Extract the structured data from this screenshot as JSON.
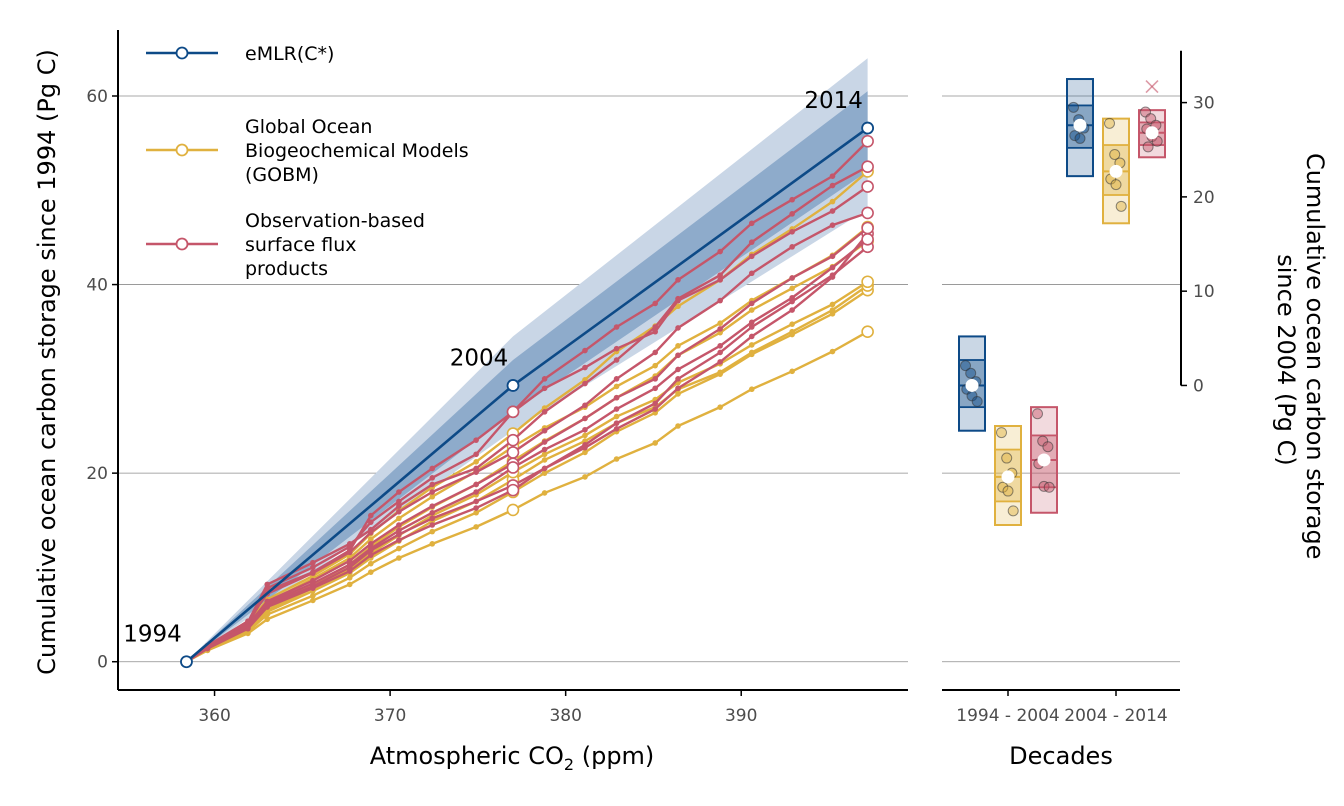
{
  "colors": {
    "emlr": "#0d4a87",
    "gobm": "#e0b13f",
    "obs": "#c5566a",
    "band_outer": "#c9d6e6",
    "band_inner": "#8eabcb",
    "grid": "#8c8c8c",
    "axis": "#000000"
  },
  "chart_data": [
    {
      "type": "line",
      "xlabel_main": "Atmospheric CO",
      "xlabel_sub": "2",
      "xlabel_tail": " (ppm)",
      "ylabel": "Cumulative ocean carbon storage since 1994 (Pg C)",
      "xlim": [
        354.5,
        399.5
      ],
      "ylim": [
        -3,
        67
      ],
      "xticks": [
        360,
        370,
        380,
        390
      ],
      "yticks": [
        0,
        20,
        40,
        60
      ],
      "grid": "horizontal",
      "legend_position": "top-left",
      "legend": [
        {
          "key": "emlr",
          "lines": [
            "eMLR(C*)"
          ]
        },
        {
          "key": "gobm",
          "lines": [
            "Global Ocean",
            "Biogeochemical Models",
            "(GOBM)"
          ]
        },
        {
          "key": "obs",
          "lines": [
            "Observation-based",
            "surface flux",
            "products"
          ]
        }
      ],
      "year_labels": [
        {
          "text": "1994",
          "x": 358.4,
          "y": 0
        },
        {
          "text": "2004",
          "x": 377.0,
          "y": 29.3
        },
        {
          "text": "2014",
          "x": 397.2,
          "y": 56.6
        }
      ],
      "x_years": [
        358.4,
        359.6,
        361.9,
        363.0,
        365.6,
        367.7,
        368.9,
        370.5,
        372.4,
        374.9,
        377.0,
        378.8,
        381.1,
        382.9,
        385.1,
        386.4,
        388.8,
        390.6,
        392.9,
        395.2,
        397.2
      ],
      "emlr": {
        "x": [
          358.4,
          377.0,
          397.2
        ],
        "y": [
          0,
          29.3,
          56.6
        ]
      },
      "band_outer": {
        "x": [
          358.4,
          377.0,
          397.2
        ],
        "lower": [
          0,
          24.5,
          48.0
        ],
        "upper": [
          0,
          34.5,
          64.0
        ]
      },
      "band_inner": {
        "x": [
          358.4,
          377.0,
          397.2
        ],
        "lower": [
          0,
          26.5,
          52.0
        ],
        "upper": [
          0,
          32.0,
          60.5
        ]
      },
      "series": [
        {
          "group": "gobm",
          "values": [
            0,
            1.2,
            3.0,
            4.5,
            6.5,
            8.2,
            9.5,
            11.0,
            12.5,
            14.3,
            16.1,
            17.9,
            19.6,
            21.5,
            23.2,
            25.0,
            27.0,
            28.9,
            30.8,
            32.9,
            35.0
          ]
        },
        {
          "group": "gobm",
          "values": [
            0,
            1.3,
            3.2,
            5.0,
            7.0,
            8.9,
            10.4,
            12.0,
            13.8,
            15.8,
            18.0,
            20.0,
            22.2,
            24.4,
            26.4,
            28.4,
            30.5,
            32.6,
            34.7,
            36.9,
            39.4
          ]
        },
        {
          "group": "gobm",
          "values": [
            0,
            1.4,
            3.4,
            5.3,
            7.5,
            9.4,
            11.0,
            12.8,
            14.9,
            17.0,
            19.3,
            21.4,
            23.4,
            25.3,
            27.0,
            28.9,
            30.7,
            32.8,
            35.0,
            37.3,
            39.9
          ]
        },
        {
          "group": "gobm",
          "values": [
            0,
            1.4,
            3.5,
            5.5,
            7.8,
            9.8,
            11.5,
            13.4,
            15.5,
            17.7,
            20.1,
            22.0,
            24.0,
            26.0,
            27.8,
            29.6,
            31.6,
            33.6,
            35.8,
            37.9,
            40.3
          ]
        },
        {
          "group": "gobm",
          "values": [
            0,
            1.5,
            3.6,
            5.8,
            8.2,
            10.3,
            12.2,
            14.3,
            16.4,
            18.8,
            21.3,
            23.4,
            25.8,
            28.0,
            30.3,
            32.5,
            34.9,
            37.3,
            39.6,
            41.9,
            44.6
          ]
        },
        {
          "group": "gobm",
          "values": [
            0,
            1.6,
            3.9,
            6.3,
            8.8,
            11.0,
            13.0,
            15.2,
            17.5,
            20.2,
            22.8,
            24.8,
            27.0,
            29.2,
            31.4,
            33.5,
            35.9,
            38.3,
            40.7,
            43.1,
            46.1
          ]
        },
        {
          "group": "gobm",
          "values": [
            0,
            1.7,
            4.1,
            6.6,
            9.1,
            11.4,
            13.6,
            16.0,
            18.5,
            21.2,
            24.2,
            26.9,
            29.9,
            32.9,
            35.6,
            37.7,
            40.5,
            43.2,
            45.9,
            48.8,
            52.0
          ]
        },
        {
          "group": "obs",
          "values": [
            0,
            1.5,
            4.0,
            7.8,
            10.0,
            12.2,
            14.8,
            17.0,
            19.5,
            22.0,
            26.5,
            29.0,
            31.2,
            33.2,
            35.0,
            38.3,
            40.5,
            43.0,
            45.6,
            47.8,
            50.4
          ]
        },
        {
          "group": "obs",
          "values": [
            0,
            1.6,
            4.2,
            8.2,
            10.5,
            12.5,
            14.0,
            16.5,
            18.8,
            20.5,
            23.5,
            26.5,
            29.5,
            32.0,
            35.5,
            38.5,
            41.0,
            44.5,
            47.5,
            50.5,
            52.5
          ]
        },
        {
          "group": "obs",
          "values": [
            0,
            1.6,
            4.0,
            7.5,
            9.5,
            11.8,
            15.5,
            18.0,
            20.5,
            23.5,
            26.5,
            30.0,
            33.0,
            35.5,
            38.0,
            40.5,
            43.5,
            46.5,
            49.0,
            51.5,
            55.2
          ]
        },
        {
          "group": "obs",
          "values": [
            0,
            1.4,
            3.6,
            6.0,
            8.0,
            10.0,
            11.8,
            13.5,
            15.2,
            17.0,
            18.7,
            20.5,
            22.7,
            24.7,
            26.8,
            29.0,
            31.8,
            34.5,
            37.3,
            40.8,
            45.4
          ]
        },
        {
          "group": "obs",
          "values": [
            0,
            1.4,
            3.5,
            5.8,
            7.8,
            9.6,
            11.3,
            12.9,
            14.5,
            16.3,
            18.2,
            20.5,
            23.0,
            25.3,
            27.4,
            30.0,
            32.8,
            35.5,
            38.2,
            41.0,
            44.0
          ]
        },
        {
          "group": "obs",
          "values": [
            0,
            1.5,
            3.9,
            6.4,
            8.6,
            10.7,
            12.5,
            14.5,
            16.5,
            18.8,
            21.0,
            23.3,
            25.8,
            28.0,
            30.0,
            32.5,
            35.3,
            38.0,
            40.7,
            43.0,
            46.0
          ]
        },
        {
          "group": "obs",
          "values": [
            0,
            1.5,
            3.8,
            6.2,
            8.3,
            10.3,
            12.0,
            13.9,
            15.8,
            18.0,
            20.6,
            22.5,
            24.6,
            26.8,
            29.0,
            31.0,
            33.5,
            36.0,
            38.6,
            41.8,
            44.8
          ]
        },
        {
          "group": "obs",
          "values": [
            0,
            1.7,
            4.3,
            7.2,
            9.4,
            11.6,
            13.7,
            15.9,
            18.0,
            20.1,
            22.2,
            24.5,
            27.2,
            30.0,
            32.8,
            35.4,
            38.3,
            41.2,
            44.0,
            46.3,
            47.6
          ]
        }
      ]
    },
    {
      "type": "box",
      "xlabel": "Decades",
      "y2label_lines": [
        "Cumulative ocean carbon storage",
        "since 2004 (Pg C)"
      ],
      "categories": [
        "1994 - 2004",
        "2004 - 2014"
      ],
      "ylim": [
        -3,
        67
      ],
      "y2ticks": [
        0,
        10,
        20,
        30
      ],
      "y2_offset": 29.3,
      "boxes": [
        {
          "decade": 0,
          "group": "emlr",
          "box_low": 24.5,
          "box_high": 34.5,
          "inner_low": 27.0,
          "inner_high": 32.0,
          "mean": 29.3,
          "points": [
            31.4,
            30.6,
            29.7,
            28.9,
            28.2,
            27.6
          ]
        },
        {
          "decade": 0,
          "group": "gobm",
          "box_low": 14.5,
          "box_high": 25.0,
          "inner_low": 17.0,
          "inner_high": 22.5,
          "mean": 19.6,
          "points": [
            24.3,
            21.6,
            20.0,
            18.5,
            18.1,
            16.0
          ]
        },
        {
          "decade": 0,
          "group": "obs",
          "box_low": 15.8,
          "box_high": 27.0,
          "inner_low": 18.5,
          "inner_high": 24.0,
          "mean": 21.4,
          "points": [
            26.3,
            23.4,
            22.8,
            21.0,
            18.6,
            18.5
          ]
        },
        {
          "decade": 1,
          "group": "emlr",
          "box_low": 51.5,
          "box_high": 61.8,
          "inner_low": 54.5,
          "inner_high": 59.0,
          "mean": 56.9,
          "points": [
            58.8,
            57.5,
            56.6,
            55.8,
            55.5
          ]
        },
        {
          "decade": 1,
          "group": "gobm",
          "box_low": 46.5,
          "box_high": 57.6,
          "inner_low": 49.5,
          "inner_high": 54.8,
          "mean": 52.0,
          "points": [
            57.1,
            53.8,
            52.9,
            51.2,
            50.6,
            48.3
          ]
        },
        {
          "decade": 1,
          "group": "obs",
          "box_low": 53.5,
          "box_high": 58.5,
          "inner_low": 54.8,
          "inner_high": 57.2,
          "mean": 56.1,
          "points": [
            58.3,
            57.6,
            56.9,
            56.5,
            55.7,
            55.2,
            54.6
          ]
        },
        {
          "decade": 1,
          "group": "obs",
          "marker": "cross",
          "points": [
            61.0
          ]
        }
      ]
    }
  ]
}
